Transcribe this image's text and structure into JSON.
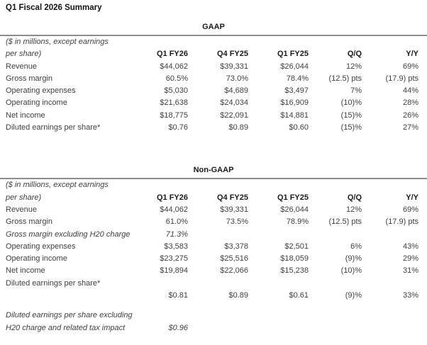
{
  "title": "Q1 Fiscal 2026 Summary",
  "note_line1": "($ in millions, except earnings",
  "note_line2": "per share)",
  "columns": [
    "Q1 FY26",
    "Q4 FY25",
    "Q1 FY25",
    "Q/Q",
    "Y/Y"
  ],
  "sections": [
    {
      "name": "GAAP",
      "rows": [
        {
          "label": "Revenue",
          "values": [
            "$44,062",
            "$39,331",
            "$26,044",
            "12%",
            "69%"
          ]
        },
        {
          "label": "Gross margin",
          "values": [
            "60.5%",
            "73.0%",
            "78.4%",
            "(12.5) pts",
            "(17.9) pts"
          ]
        },
        {
          "label": "Operating expenses",
          "values": [
            "$5,030",
            "$4,689",
            "$3,497",
            "7%",
            "44%"
          ]
        },
        {
          "label": "Operating income",
          "values": [
            "$21,638",
            "$24,034",
            "$16,909",
            "(10)%",
            "28%"
          ]
        },
        {
          "label": "Net income",
          "values": [
            "$18,775",
            "$22,091",
            "$14,881",
            "(15)%",
            "26%"
          ]
        },
        {
          "label": "Diluted earnings per share*",
          "values": [
            "$0.76",
            "$0.89",
            "$0.60",
            "(15)%",
            "27%"
          ]
        }
      ]
    },
    {
      "name": "Non-GAAP",
      "rows": [
        {
          "label": "Revenue",
          "values": [
            "$44,062",
            "$39,331",
            "$26,044",
            "12%",
            "69%"
          ]
        },
        {
          "label": "Gross margin",
          "values": [
            "61.0%",
            "73.5%",
            "78.9%",
            "(12.5) pts",
            "(17.9) pts"
          ]
        },
        {
          "label": "Gross margin excluding H20 charge",
          "italic": true,
          "values": [
            "71.3%",
            "",
            "",
            "",
            ""
          ]
        },
        {
          "label": "Operating expenses",
          "values": [
            "$3,583",
            "$3,378",
            "$2,501",
            "6%",
            "43%"
          ]
        },
        {
          "label": "Operating income",
          "values": [
            "$23,275",
            "$25,516",
            "$18,059",
            "(9)%",
            "29%"
          ]
        },
        {
          "label": "Net income",
          "values": [
            "$19,894",
            "$22,066",
            "$15,238",
            "(10)%",
            "31%"
          ]
        },
        {
          "label": "Diluted earnings per share*",
          "values": [
            "",
            "",
            "",
            "",
            ""
          ]
        },
        {
          "label": "",
          "values": [
            "$0.81",
            "$0.89",
            "$0.61",
            "(9)%",
            "33%"
          ]
        },
        {
          "label": "Diluted earnings per share excluding",
          "italic": true,
          "gap_before": true,
          "values": [
            "",
            "",
            "",
            "",
            ""
          ]
        },
        {
          "label": "H20 charge and related tax impact",
          "italic": true,
          "values": [
            "$0.96",
            "",
            "",
            "",
            ""
          ]
        }
      ]
    }
  ]
}
